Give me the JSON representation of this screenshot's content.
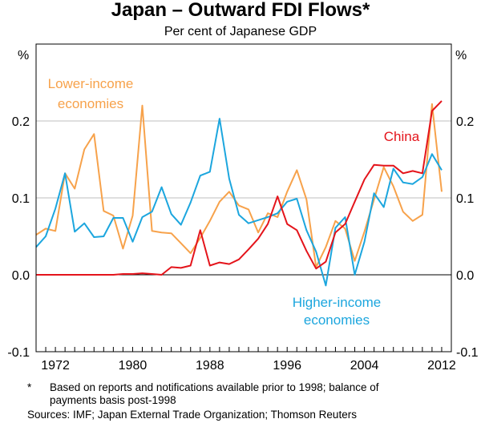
{
  "chart_data": {
    "type": "line",
    "title": "Japan – Outward FDI Flows*",
    "subtitle": "Per cent of Japanese GDP",
    "unit_left": "%",
    "unit_right": "%",
    "xlim": [
      1970,
      2013
    ],
    "ylim": [
      -0.1,
      0.3
    ],
    "x_ticks": [
      "1972",
      "1980",
      "1988",
      "1996",
      "2004",
      "2012"
    ],
    "y_ticks": [
      "0.2",
      "0.1",
      "0.0",
      "-0.1"
    ],
    "colors": {
      "lower_income": "#F7A24B",
      "higher_income": "#1CA6DE",
      "china": "#E4141B",
      "grid": "#BFBFBF",
      "axis": "#000000"
    },
    "annotations": [
      {
        "text": "Lower-income",
        "series": "lower_income",
        "line": 1
      },
      {
        "text": "economies",
        "series": "lower_income",
        "line": 2
      },
      {
        "text": "China",
        "series": "china",
        "line": 1
      },
      {
        "text": "Higher-income",
        "series": "higher_income",
        "line": 1
      },
      {
        "text": "economies",
        "series": "higher_income",
        "line": 2
      }
    ],
    "series": [
      {
        "key": "lower_income",
        "name": "Lower-income economies",
        "x": [
          1970,
          1971,
          1972,
          1973,
          1974,
          1975,
          1976,
          1977,
          1978,
          1979,
          1980,
          1981,
          1982,
          1983,
          1984,
          1985,
          1986,
          1987,
          1988,
          1989,
          1990,
          1991,
          1992,
          1993,
          1994,
          1995,
          1996,
          1997,
          1998,
          1999,
          2000,
          2001,
          2002,
          2003,
          2004,
          2005,
          2006,
          2007,
          2008,
          2009,
          2010,
          2011,
          2012
        ],
        "values": [
          0.052,
          0.06,
          0.057,
          0.132,
          0.112,
          0.163,
          0.183,
          0.083,
          0.077,
          0.034,
          0.077,
          0.22,
          0.057,
          0.055,
          0.054,
          0.041,
          0.028,
          0.048,
          0.07,
          0.095,
          0.108,
          0.09,
          0.085,
          0.055,
          0.08,
          0.075,
          0.108,
          0.136,
          0.098,
          0.01,
          0.036,
          0.07,
          0.06,
          0.018,
          0.056,
          0.098,
          0.14,
          0.115,
          0.082,
          0.07,
          0.078,
          0.222,
          0.108
        ]
      },
      {
        "key": "higher_income",
        "name": "Higher-income economies",
        "x": [
          1970,
          1971,
          1972,
          1973,
          1974,
          1975,
          1976,
          1977,
          1978,
          1979,
          1980,
          1981,
          1982,
          1983,
          1984,
          1985,
          1986,
          1987,
          1988,
          1989,
          1990,
          1991,
          1992,
          1993,
          1994,
          1995,
          1996,
          1997,
          1998,
          1999,
          2000,
          2001,
          2002,
          2003,
          2004,
          2005,
          2006,
          2007,
          2008,
          2009,
          2010,
          2011,
          2012
        ],
        "values": [
          0.036,
          0.05,
          0.086,
          0.132,
          0.056,
          0.067,
          0.049,
          0.05,
          0.074,
          0.074,
          0.043,
          0.075,
          0.082,
          0.114,
          0.079,
          0.065,
          0.094,
          0.129,
          0.134,
          0.203,
          0.125,
          0.078,
          0.067,
          0.071,
          0.075,
          0.08,
          0.095,
          0.099,
          0.058,
          0.03,
          -0.014,
          0.061,
          0.075,
          0.0,
          0.043,
          0.106,
          0.088,
          0.138,
          0.12,
          0.118,
          0.127,
          0.157,
          0.136
        ]
      },
      {
        "key": "china",
        "name": "China",
        "x": [
          1970,
          1971,
          1972,
          1973,
          1974,
          1975,
          1976,
          1977,
          1978,
          1979,
          1980,
          1981,
          1982,
          1983,
          1984,
          1985,
          1986,
          1987,
          1988,
          1989,
          1990,
          1991,
          1992,
          1993,
          1994,
          1995,
          1996,
          1997,
          1998,
          1999,
          2000,
          2001,
          2002,
          2003,
          2004,
          2005,
          2006,
          2007,
          2008,
          2009,
          2010,
          2011,
          2012
        ],
        "values": [
          0.0,
          0.0,
          0.0,
          0.0,
          0.0,
          0.0,
          0.0,
          0.0,
          0.0,
          0.001,
          0.001,
          0.002,
          0.001,
          0.0,
          0.01,
          0.009,
          0.012,
          0.058,
          0.012,
          0.016,
          0.014,
          0.02,
          0.033,
          0.047,
          0.066,
          0.102,
          0.066,
          0.058,
          0.031,
          0.008,
          0.017,
          0.055,
          0.066,
          0.095,
          0.124,
          0.143,
          0.142,
          0.142,
          0.132,
          0.135,
          0.132,
          0.213,
          0.226
        ]
      }
    ]
  },
  "footnote": {
    "marker": "*",
    "line1": "Based on reports and notifications available prior to 1998; balance of",
    "line2": "payments basis post-1998"
  },
  "sources": "Sources: IMF; Japan External Trade Organization; Thomson Reuters"
}
